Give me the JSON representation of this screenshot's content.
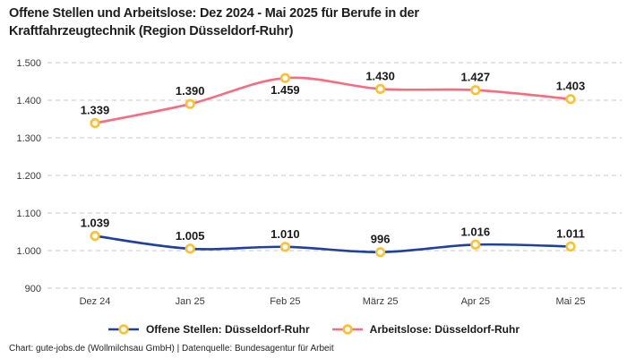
{
  "title_lines": [
    "Offene Stellen und Arbeitslose: Dez 2024 - Mai 2025 für Berufe in der",
    "Kraftfahrzeugtechnik (Region Düsseldorf-Ruhr)"
  ],
  "footer": "Chart: gute-jobs.de (Wollmilchsau GmbH) | Datenquelle: Bundesagentur für Arbeit",
  "colors": {
    "offene_stellen_line": "#20409f",
    "arbeitslose_line": "#f96b80",
    "marker_ring": "#ffc02e",
    "marker_fill": "#ffffff",
    "gridline": "#c9c9c9",
    "title_text": "#1d1d1d",
    "axis_text": "#3a3a3a",
    "label_text": "#1a1a1a"
  },
  "chart_data": {
    "type": "line",
    "title": "Offene Stellen und Arbeitslose: Dez 2024 - Mai 2025 für Berufe in der Kraftfahrzeugtechnik (Region Düsseldorf-Ruhr)",
    "categories": [
      "Dez 24",
      "Jan 25",
      "Feb 25",
      "März 25",
      "Apr 25",
      "Mai 25"
    ],
    "series": [
      {
        "name": "Offene Stellen: Düsseldorf-Ruhr",
        "color": "#20409f",
        "values": [
          1039,
          1005,
          1010,
          996,
          1016,
          1011
        ],
        "point_labels": [
          "1.039",
          "1.005",
          "1.010",
          "996",
          "1.016",
          "1.011"
        ],
        "label_placement": [
          "above",
          "above",
          "above",
          "above",
          "above",
          "above"
        ]
      },
      {
        "name": "Arbeitslose: Düsseldorf-Ruhr",
        "color": "#f96b80",
        "values": [
          1339,
          1390,
          1459,
          1430,
          1427,
          1403
        ],
        "point_labels": [
          "1.339",
          "1.390",
          "1.459",
          "1.430",
          "1.427",
          "1.403"
        ],
        "label_placement": [
          "above",
          "above",
          "below",
          "above",
          "above",
          "above"
        ]
      }
    ],
    "xlabel": "",
    "ylabel": "",
    "ylim": [
      900,
      1500
    ],
    "yticks": [
      900,
      1000,
      1100,
      1200,
      1300,
      1400,
      1500
    ],
    "ytick_labels": [
      "900",
      "1.000",
      "1.100",
      "1.200",
      "1.300",
      "1.400",
      "1.500"
    ],
    "grid": "horizontal-dashed",
    "legend_position": "bottom",
    "marker": {
      "shape": "circle",
      "ring_color": "#ffc02e",
      "fill": "#ffffff"
    }
  }
}
